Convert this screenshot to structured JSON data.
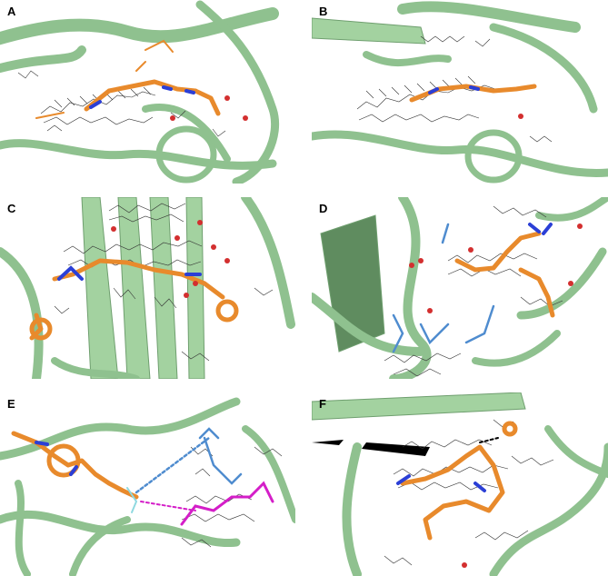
{
  "panels": [
    {
      "id": "A",
      "label": "A"
    },
    {
      "id": "B",
      "label": "B"
    },
    {
      "id": "C",
      "label": "C"
    },
    {
      "id": "D",
      "label": "D"
    },
    {
      "id": "E",
      "label": "E"
    },
    {
      "id": "F",
      "label": "F"
    }
  ],
  "colors": {
    "protein_ribbon": "#8fc18f",
    "ligand_carbon": "#e88a2c",
    "nitrogen": "#2b3fd6",
    "oxygen_water": "#d32f2f",
    "density_mesh": "#333333",
    "residue_sticks": "#4f8ccf",
    "alt_ligand": "#d41ec8"
  }
}
